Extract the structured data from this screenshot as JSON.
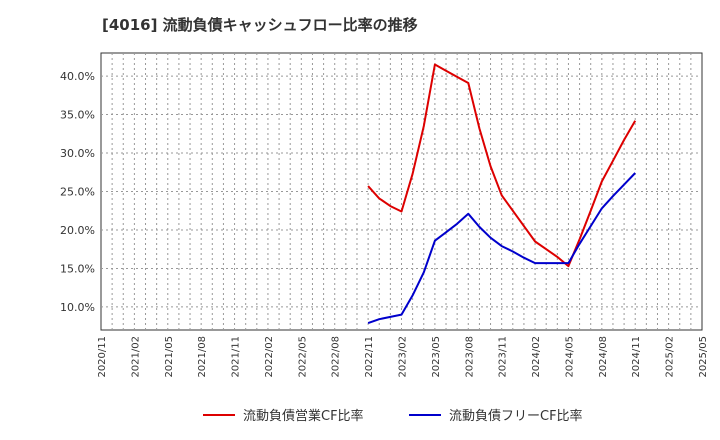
{
  "chart_data": {
    "type": "line",
    "title": "[4016]  流動負債キャッシュフロー比率の推移",
    "xlabel": "",
    "ylabel": "",
    "x_ticks": [
      "2020/11",
      "2021/02",
      "2021/05",
      "2021/08",
      "2021/11",
      "2022/02",
      "2022/05",
      "2022/08",
      "2022/11",
      "2023/02",
      "2023/05",
      "2023/08",
      "2023/11",
      "2024/02",
      "2024/05",
      "2024/08",
      "2024/11",
      "2025/02",
      "2025/05"
    ],
    "y_ticks": [
      "10.0%",
      "15.0%",
      "20.0%",
      "25.0%",
      "30.0%",
      "35.0%",
      "40.0%"
    ],
    "y_tick_values": [
      10,
      15,
      20,
      25,
      30,
      35,
      40
    ],
    "ylim": [
      7,
      43
    ],
    "grid": true,
    "legend_position": "bottom-center",
    "series": [
      {
        "name": "流動負債営業CF比率",
        "color": "#dd0000",
        "points": [
          [
            "2022/11",
            25.7
          ],
          [
            "2022/12",
            24.1
          ],
          [
            "2023/01",
            23.1
          ],
          [
            "2023/02",
            22.4
          ],
          [
            "2023/03",
            27.3
          ],
          [
            "2023/04",
            33.5
          ],
          [
            "2023/05",
            41.5
          ],
          [
            "2023/06",
            40.7
          ],
          [
            "2023/07",
            39.9
          ],
          [
            "2023/08",
            39.1
          ],
          [
            "2023/09",
            33.2
          ],
          [
            "2023/10",
            28.3
          ],
          [
            "2023/11",
            24.5
          ],
          [
            "2023/12",
            22.5
          ],
          [
            "2024/01",
            20.5
          ],
          [
            "2024/02",
            18.5
          ],
          [
            "2024/03",
            17.5
          ],
          [
            "2024/04",
            16.5
          ],
          [
            "2024/05",
            15.3
          ],
          [
            "2024/06",
            18.8
          ],
          [
            "2024/07",
            22.5
          ],
          [
            "2024/08",
            26.3
          ],
          [
            "2024/09",
            29.0
          ],
          [
            "2024/10",
            31.7
          ],
          [
            "2024/11",
            34.2
          ]
        ]
      },
      {
        "name": "流動負債フリーCF比率",
        "color": "#0000cc",
        "points": [
          [
            "2022/11",
            7.9
          ],
          [
            "2022/12",
            8.4
          ],
          [
            "2023/01",
            8.7
          ],
          [
            "2023/02",
            9.0
          ],
          [
            "2023/03",
            11.5
          ],
          [
            "2023/04",
            14.5
          ],
          [
            "2023/05",
            18.6
          ],
          [
            "2023/06",
            19.7
          ],
          [
            "2023/07",
            20.8
          ],
          [
            "2023/08",
            22.1
          ],
          [
            "2023/09",
            20.4
          ],
          [
            "2023/10",
            19.0
          ],
          [
            "2023/11",
            17.9
          ],
          [
            "2023/12",
            17.2
          ],
          [
            "2024/01",
            16.4
          ],
          [
            "2024/02",
            15.7
          ],
          [
            "2024/03",
            15.7
          ],
          [
            "2024/04",
            15.7
          ],
          [
            "2024/05",
            15.7
          ],
          [
            "2024/06",
            18.2
          ],
          [
            "2024/07",
            20.5
          ],
          [
            "2024/08",
            22.8
          ],
          [
            "2024/09",
            24.4
          ],
          [
            "2024/10",
            25.9
          ],
          [
            "2024/11",
            27.4
          ]
        ]
      }
    ]
  }
}
